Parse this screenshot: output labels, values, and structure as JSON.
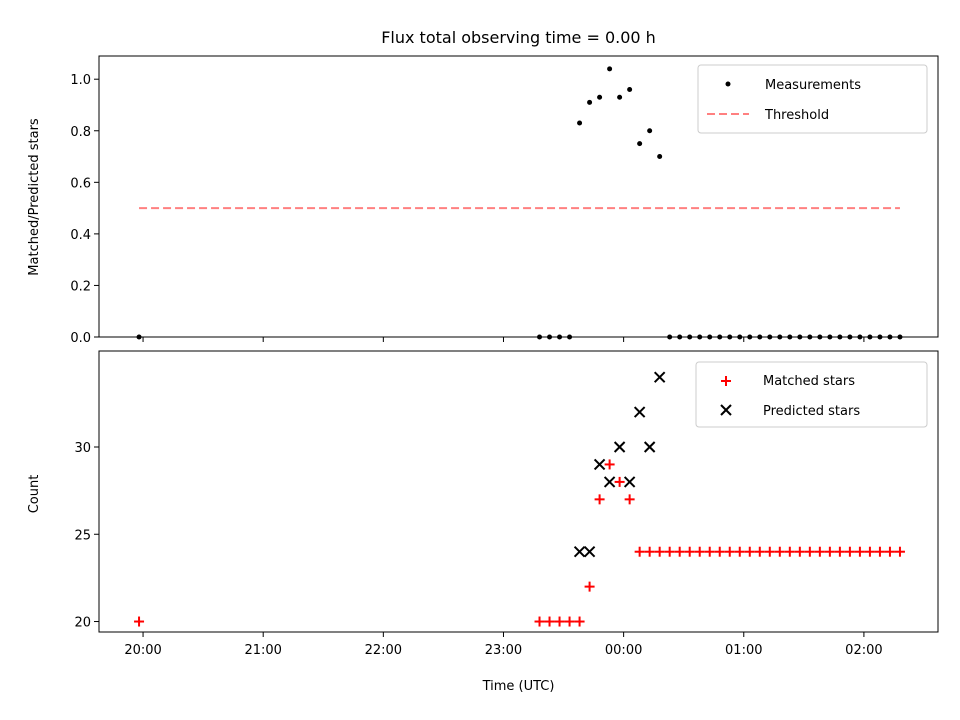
{
  "chart_data": [
    {
      "type": "scatter",
      "title": "Flux total observing time = 0.00 h",
      "xlabel": "",
      "ylabel": "Matched/Predicted stars",
      "ylim": [
        0,
        1.09
      ],
      "y_ticks": [
        0.0,
        0.2,
        0.4,
        0.6,
        0.8,
        1.0
      ],
      "y_tick_labels": [
        "0.0",
        "0.2",
        "0.4",
        "0.6",
        "0.8",
        "1.0"
      ],
      "xlim": [
        "19:38",
        "02:37"
      ],
      "x_ticks": [
        "20:00",
        "21:00",
        "22:00",
        "23:00",
        "00:00",
        "01:00",
        "02:00"
      ],
      "legend_position": "top-right",
      "legend": [
        {
          "label": "Measurements",
          "marker": "dot",
          "color": "#000000"
        },
        {
          "label": "Threshold",
          "marker": "dashed-line",
          "color": "#ff8080"
        }
      ],
      "series": [
        {
          "name": "Measurements",
          "color": "#000000",
          "x": [
            "19:58",
            "23:18",
            "23:23",
            "23:28",
            "23:33",
            "23:38",
            "23:43",
            "23:48",
            "23:53",
            "23:58",
            "00:03",
            "00:08",
            "00:13",
            "00:18",
            "00:23",
            "00:28",
            "00:33",
            "00:38",
            "00:43",
            "00:48",
            "00:53",
            "00:58",
            "01:03",
            "01:08",
            "01:13",
            "01:18",
            "01:23",
            "01:28",
            "01:33",
            "01:38",
            "01:43",
            "01:48",
            "01:53",
            "01:58",
            "02:03",
            "02:08",
            "02:13",
            "02:18"
          ],
          "y": [
            0,
            0,
            0,
            0,
            0,
            0.83,
            0.91,
            0.93,
            1.04,
            0.93,
            0.96,
            0.75,
            0.8,
            0.7,
            0,
            0,
            0,
            0,
            0,
            0,
            0,
            0,
            0,
            0,
            0,
            0,
            0,
            0,
            0,
            0,
            0,
            0,
            0,
            0,
            0,
            0,
            0,
            0
          ]
        },
        {
          "name": "Threshold",
          "color": "#ff8080",
          "style": "dashed",
          "x": [
            "19:58",
            "02:18"
          ],
          "y": [
            0.5,
            0.5
          ]
        }
      ]
    },
    {
      "type": "scatter",
      "title": "",
      "xlabel": "Time (UTC)",
      "ylabel": "Count",
      "ylim": [
        19.4,
        35.5
      ],
      "y_ticks": [
        20,
        25,
        30
      ],
      "y_tick_labels": [
        "20",
        "25",
        "30"
      ],
      "xlim": [
        "19:38",
        "02:37"
      ],
      "x_ticks": [
        "20:00",
        "21:00",
        "22:00",
        "23:00",
        "00:00",
        "01:00",
        "02:00"
      ],
      "x_tick_labels": [
        "20:00",
        "21:00",
        "22:00",
        "23:00",
        "00:00",
        "01:00",
        "02:00"
      ],
      "legend_position": "top-right",
      "legend": [
        {
          "label": "Matched stars",
          "marker": "plus",
          "color": "#ff0000"
        },
        {
          "label": "Predicted stars",
          "marker": "x",
          "color": "#000000"
        }
      ],
      "series": [
        {
          "name": "Matched stars",
          "color": "#ff0000",
          "x": [
            "19:58",
            "23:18",
            "23:23",
            "23:28",
            "23:33",
            "23:38",
            "23:43",
            "23:48",
            "23:53",
            "23:58",
            "00:03",
            "00:08",
            "00:13",
            "00:18",
            "00:23",
            "00:28",
            "00:33",
            "00:38",
            "00:43",
            "00:48",
            "00:53",
            "00:58",
            "01:03",
            "01:08",
            "01:13",
            "01:18",
            "01:23",
            "01:28",
            "01:33",
            "01:38",
            "01:43",
            "01:48",
            "01:53",
            "01:58",
            "02:03",
            "02:08",
            "02:13",
            "02:18"
          ],
          "y": [
            20,
            20,
            20,
            20,
            20,
            20,
            22,
            27,
            29,
            28,
            27,
            24,
            24,
            24,
            24,
            24,
            24,
            24,
            24,
            24,
            24,
            24,
            24,
            24,
            24,
            24,
            24,
            24,
            24,
            24,
            24,
            24,
            24,
            24,
            24,
            24,
            24,
            24
          ]
        },
        {
          "name": "Predicted stars",
          "color": "#000000",
          "x": [
            "23:38",
            "23:43",
            "23:48",
            "23:53",
            "23:58",
            "00:03",
            "00:08",
            "00:13",
            "00:18"
          ],
          "y": [
            24,
            24,
            29,
            28,
            30,
            28,
            32,
            30,
            34
          ]
        }
      ]
    }
  ]
}
